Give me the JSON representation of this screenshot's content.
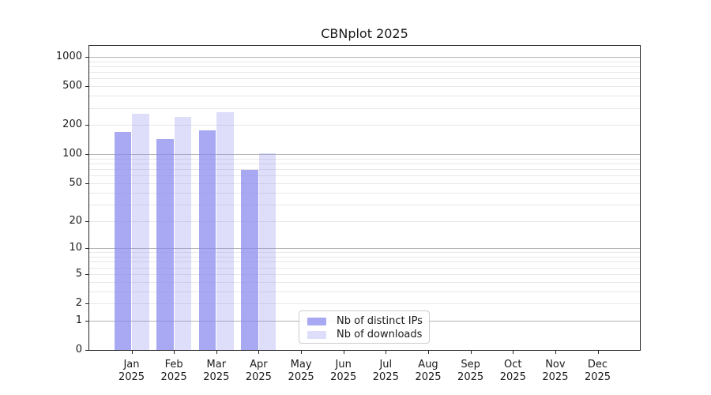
{
  "title": "CBNplot 2025",
  "chart_data": {
    "type": "bar",
    "title": "CBNplot 2025",
    "x_categories": [
      {
        "month": "Jan",
        "year": "2025"
      },
      {
        "month": "Feb",
        "year": "2025"
      },
      {
        "month": "Mar",
        "year": "2025"
      },
      {
        "month": "Apr",
        "year": "2025"
      },
      {
        "month": "May",
        "year": "2025"
      },
      {
        "month": "Jun",
        "year": "2025"
      },
      {
        "month": "Jul",
        "year": "2025"
      },
      {
        "month": "Aug",
        "year": "2025"
      },
      {
        "month": "Sep",
        "year": "2025"
      },
      {
        "month": "Oct",
        "year": "2025"
      },
      {
        "month": "Nov",
        "year": "2025"
      },
      {
        "month": "Dec",
        "year": "2025"
      }
    ],
    "series": [
      {
        "name": "Nb of distinct IPs",
        "color": "rgba(136,136,238,0.72)",
        "values": [
          170,
          144,
          176,
          69,
          null,
          null,
          null,
          null,
          null,
          null,
          null,
          null
        ]
      },
      {
        "name": "Nb of downloads",
        "color": "rgba(136,136,238,0.28)",
        "values": [
          260,
          244,
          272,
          102,
          null,
          null,
          null,
          null,
          null,
          null,
          null,
          null
        ]
      }
    ],
    "yaxis": {
      "scale": "log1p",
      "ticks": [
        0,
        1,
        2,
        5,
        10,
        20,
        50,
        100,
        200,
        500,
        1000
      ],
      "power_gridlines": [
        1,
        10,
        100,
        1000
      ],
      "minor_gridlines": [
        3,
        4,
        6,
        7,
        8,
        9,
        30,
        40,
        60,
        70,
        80,
        90,
        300,
        400,
        600,
        700,
        800,
        900
      ],
      "range": [
        0,
        1300
      ],
      "grid": true
    },
    "legend": {
      "position": "lower center",
      "entries": [
        "Nb of distinct IPs",
        "Nb of downloads"
      ]
    }
  },
  "colors": {
    "background": "#ffffff",
    "spine": "#262626",
    "major_grid": "#b3b3b3",
    "minor_grid": "#e8e8e8",
    "text": "#1a1a1a",
    "legend_border": "#cccccc",
    "bar_distinct_ips": "rgba(136,136,238,0.72)",
    "bar_downloads": "rgba(136,136,238,0.28)"
  }
}
